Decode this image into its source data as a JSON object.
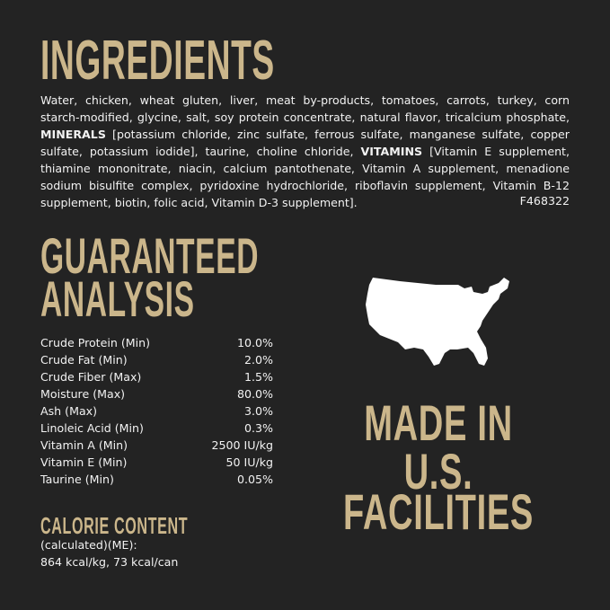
{
  "ingredients": {
    "title": "INGREDIENTS",
    "text_part1": "Water, chicken, wheat gluten, liver, meat by-products, tomatoes, carrots, turkey, corn starch-modified, glycine, salt, soy protein concentrate, natural flavor, tricalcium phosphate, ",
    "minerals_label": "MINERALS",
    "text_part2": " [potassium chloride, zinc sulfate, ferrous sulfate, manganese sulfate, copper sulfate, potassium iodide], taurine, choline chloride, ",
    "vitamins_label": "VITAMINS",
    "text_part3": " [Vitamin E supplement, thiamine mononitrate, niacin, calcium pantothenate, Vitamin A supplement, menadione sodium bisulfite complex, pyridoxine hydrochloride, riboflavin supplement, Vitamin B-12 supplement, biotin, folic acid, Vitamin D-3 supplement].",
    "code": "F468322"
  },
  "analysis": {
    "title_line1": "GUARANTEED",
    "title_line2": "ANALYSIS",
    "rows": [
      {
        "label": "Crude Protein (Min)",
        "value": "10.0%"
      },
      {
        "label": "Crude Fat (Min)",
        "value": "2.0%"
      },
      {
        "label": "Crude Fiber (Max)",
        "value": "1.5%"
      },
      {
        "label": "Moisture (Max)",
        "value": "80.0%"
      },
      {
        "label": "Ash (Max)",
        "value": "3.0%"
      },
      {
        "label": "Linoleic Acid (Min)",
        "value": "0.3%"
      },
      {
        "label": "Vitamin A (Min)",
        "value": "2500 IU/kg"
      },
      {
        "label": "Vitamin E (Min)",
        "value": "50 IU/kg"
      },
      {
        "label": "Taurine (Min)",
        "value": "0.05%"
      }
    ]
  },
  "calorie": {
    "title": "CALORIE CONTENT",
    "line1": "(calculated)(ME):",
    "line2": "864 kcal/kg, 73 kcal/can"
  },
  "made_in": {
    "icon": "usa-map-icon",
    "line1": "MADE IN",
    "line2": "U.S.",
    "line3": "FACILITIES"
  },
  "colors": {
    "background": "#232323",
    "accent": "#cbb68b",
    "text": "#f2f2f2"
  }
}
